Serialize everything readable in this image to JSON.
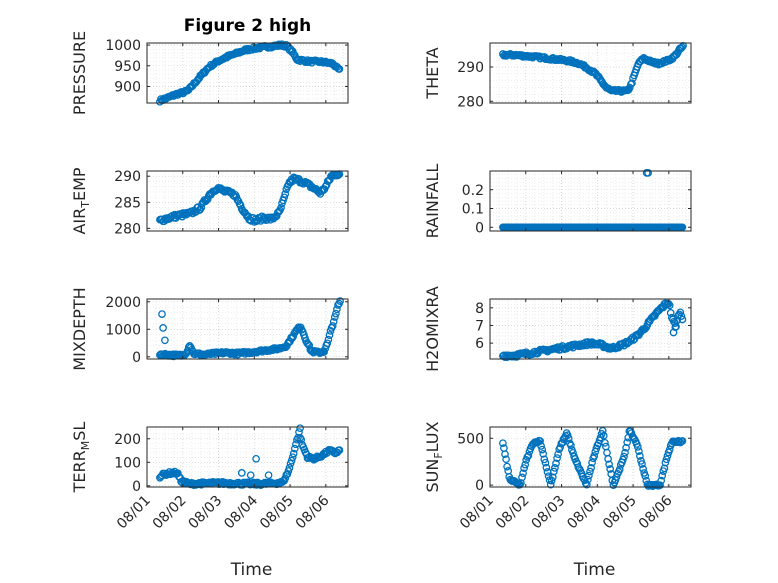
{
  "figure": {
    "title": "Figure 2 high",
    "marker_color": "#0072BD",
    "date_ticks": [
      "08/01",
      "08/02",
      "08/03",
      "08/04",
      "08/05",
      "08/06"
    ],
    "xlabel": "Time"
  },
  "chart_data": [
    {
      "type": "scatter",
      "ylabel": "PRESSURE",
      "ylabel_sub": "",
      "ylabel_tail": "",
      "xlim": [
        0,
        5.62
      ],
      "ylim": [
        860,
        1005
      ],
      "yticks": [
        900,
        950,
        1000
      ],
      "ytick_labels": [
        "900",
        "950",
        "1000"
      ],
      "show_xticklabels": false,
      "title": "Figure 2 high",
      "xlabel": "",
      "keypoints": [
        [
          0.36,
          866
        ],
        [
          0.5,
          870
        ],
        [
          0.7,
          877
        ],
        [
          0.85,
          882
        ],
        [
          1.0,
          885
        ],
        [
          1.15,
          890
        ],
        [
          1.35,
          910
        ],
        [
          1.55,
          930
        ],
        [
          1.75,
          948
        ],
        [
          2.0,
          962
        ],
        [
          2.25,
          972
        ],
        [
          2.5,
          980
        ],
        [
          2.75,
          988
        ],
        [
          3.0,
          992
        ],
        [
          3.25,
          995
        ],
        [
          3.5,
          997
        ],
        [
          3.75,
          1000
        ],
        [
          3.9,
          998
        ],
        [
          4.05,
          985
        ],
        [
          4.2,
          965
        ],
        [
          4.4,
          962
        ],
        [
          4.6,
          960
        ],
        [
          4.8,
          960
        ],
        [
          5.0,
          958
        ],
        [
          5.2,
          955
        ],
        [
          5.3,
          945
        ],
        [
          5.38,
          940
        ]
      ],
      "noise": 3
    },
    {
      "type": "scatter",
      "ylabel": "THETA",
      "ylabel_sub": "",
      "ylabel_tail": "",
      "xlim": [
        0,
        5.62
      ],
      "ylim": [
        279.5,
        297
      ],
      "yticks": [
        280,
        290
      ],
      "ytick_labels": [
        "280",
        "290"
      ],
      "show_xticklabels": false,
      "title": "",
      "xlabel": "",
      "keypoints": [
        [
          0.36,
          293.5
        ],
        [
          0.7,
          293.5
        ],
        [
          1.0,
          293.2
        ],
        [
          1.4,
          292.8
        ],
        [
          1.8,
          292.3
        ],
        [
          2.2,
          291.8
        ],
        [
          2.5,
          291
        ],
        [
          2.75,
          289.5
        ],
        [
          2.95,
          288
        ],
        [
          3.1,
          286
        ],
        [
          3.25,
          284
        ],
        [
          3.4,
          283
        ],
        [
          3.6,
          283
        ],
        [
          3.85,
          283
        ],
        [
          3.95,
          285
        ],
        [
          4.05,
          288
        ],
        [
          4.15,
          291
        ],
        [
          4.3,
          292.6
        ],
        [
          4.5,
          291.5
        ],
        [
          4.7,
          291
        ],
        [
          4.85,
          291.5
        ],
        [
          5.0,
          292
        ],
        [
          5.15,
          293
        ],
        [
          5.3,
          295
        ],
        [
          5.4,
          296
        ]
      ],
      "noise": 0.35
    },
    {
      "type": "scatter",
      "ylabel": "AIR",
      "ylabel_sub": "T",
      "ylabel_tail": "EMP",
      "xlim": [
        0,
        5.62
      ],
      "ylim": [
        279.5,
        291
      ],
      "yticks": [
        280,
        285,
        290
      ],
      "ytick_labels": [
        "280",
        "285",
        "290"
      ],
      "show_xticklabels": false,
      "title": "",
      "xlabel": "",
      "keypoints": [
        [
          0.36,
          281.5
        ],
        [
          0.6,
          282
        ],
        [
          0.9,
          282.5
        ],
        [
          1.2,
          282.8
        ],
        [
          1.5,
          284
        ],
        [
          1.75,
          286.5
        ],
        [
          1.95,
          287.8
        ],
        [
          2.2,
          287
        ],
        [
          2.45,
          286.5
        ],
        [
          2.65,
          284
        ],
        [
          2.85,
          282
        ],
        [
          3.05,
          281.5
        ],
        [
          3.25,
          282
        ],
        [
          3.5,
          281.8
        ],
        [
          3.7,
          283
        ],
        [
          3.85,
          286
        ],
        [
          3.95,
          288.5
        ],
        [
          4.1,
          289.5
        ],
        [
          4.35,
          289
        ],
        [
          4.6,
          288
        ],
        [
          4.85,
          286.8
        ],
        [
          5.0,
          288
        ],
        [
          5.15,
          290
        ],
        [
          5.3,
          290.5
        ],
        [
          5.38,
          290.3
        ]
      ],
      "noise": 0.4
    },
    {
      "type": "scatter",
      "ylabel": "RAINFALL",
      "ylabel_sub": "",
      "ylabel_tail": "",
      "xlim": [
        0,
        5.62
      ],
      "ylim": [
        -0.02,
        0.3
      ],
      "yticks": [
        0,
        0.1,
        0.2
      ],
      "ytick_labels": [
        "0",
        "0.1",
        "0.2"
      ],
      "show_xticklabels": false,
      "title": "",
      "xlabel": "",
      "keypoints": [
        [
          0.36,
          0
        ],
        [
          5.38,
          0
        ]
      ],
      "noise": 0,
      "extra_points": [
        [
          4.38,
          0.29
        ],
        [
          4.42,
          0.29
        ]
      ]
    },
    {
      "type": "scatter",
      "ylabel": "MIXDEPTH",
      "ylabel_sub": "",
      "ylabel_tail": "",
      "xlim": [
        0,
        5.62
      ],
      "ylim": [
        -80,
        2100
      ],
      "yticks": [
        0,
        1000,
        2000
      ],
      "ytick_labels": [
        "0",
        "1000",
        "2000"
      ],
      "show_xticklabels": false,
      "title": "",
      "xlabel": "",
      "keypoints": [
        [
          0.36,
          100
        ],
        [
          0.7,
          60
        ],
        [
          1.0,
          50
        ],
        [
          1.1,
          150
        ],
        [
          1.2,
          450
        ],
        [
          1.3,
          120
        ],
        [
          1.6,
          80
        ],
        [
          1.9,
          120
        ],
        [
          2.2,
          150
        ],
        [
          2.5,
          120
        ],
        [
          2.8,
          150
        ],
        [
          3.1,
          200
        ],
        [
          3.4,
          250
        ],
        [
          3.7,
          300
        ],
        [
          3.9,
          400
        ],
        [
          4.05,
          700
        ],
        [
          4.2,
          1000
        ],
        [
          4.3,
          1100
        ],
        [
          4.45,
          600
        ],
        [
          4.6,
          200
        ],
        [
          4.8,
          150
        ],
        [
          4.95,
          200
        ],
        [
          5.05,
          500
        ],
        [
          5.15,
          1000
        ],
        [
          5.25,
          1400
        ],
        [
          5.35,
          1900
        ],
        [
          5.4,
          2000
        ]
      ],
      "noise": 45,
      "extra_points": [
        [
          0.42,
          1550
        ],
        [
          0.45,
          1050
        ],
        [
          0.5,
          600
        ],
        [
          0.62,
          80
        ]
      ]
    },
    {
      "type": "scatter",
      "ylabel": "H2OMIXRA",
      "ylabel_sub": "",
      "ylabel_tail": "",
      "xlim": [
        0,
        5.62
      ],
      "ylim": [
        5.1,
        8.5
      ],
      "yticks": [
        6,
        7,
        8
      ],
      "ytick_labels": [
        "6",
        "7",
        "8"
      ],
      "show_xticklabels": false,
      "title": "",
      "xlabel": "",
      "keypoints": [
        [
          0.36,
          5.3
        ],
        [
          0.7,
          5.3
        ],
        [
          1.0,
          5.4
        ],
        [
          1.3,
          5.5
        ],
        [
          1.6,
          5.6
        ],
        [
          1.9,
          5.7
        ],
        [
          2.2,
          5.8
        ],
        [
          2.5,
          5.9
        ],
        [
          2.8,
          6.0
        ],
        [
          3.1,
          5.9
        ],
        [
          3.4,
          5.7
        ],
        [
          3.7,
          5.9
        ],
        [
          3.9,
          6.1
        ],
        [
          4.1,
          6.4
        ],
        [
          4.3,
          6.8
        ],
        [
          4.5,
          7.3
        ],
        [
          4.7,
          7.8
        ],
        [
          4.9,
          8.2
        ],
        [
          5.0,
          8.3
        ],
        [
          5.1,
          7.3
        ],
        [
          5.2,
          7.0
        ],
        [
          5.3,
          7.8
        ],
        [
          5.38,
          7.4
        ]
      ],
      "noise": 0.1,
      "extra_points": [
        [
          5.13,
          6.6
        ],
        [
          5.18,
          6.9
        ]
      ]
    },
    {
      "type": "scatter",
      "ylabel": "TERR",
      "ylabel_sub": "M",
      "ylabel_tail": "SL",
      "xlim": [
        0,
        5.62
      ],
      "ylim": [
        -5,
        250
      ],
      "yticks": [
        0,
        100,
        200
      ],
      "ytick_labels": [
        "0",
        "100",
        "200"
      ],
      "show_xticklabels": true,
      "title": "",
      "xlabel": "Time",
      "keypoints": [
        [
          0.36,
          40
        ],
        [
          0.5,
          50
        ],
        [
          0.7,
          55
        ],
        [
          0.85,
          55
        ],
        [
          0.95,
          20
        ],
        [
          1.2,
          8
        ],
        [
          1.5,
          10
        ],
        [
          2.0,
          12
        ],
        [
          2.5,
          10
        ],
        [
          3.0,
          8
        ],
        [
          3.5,
          10
        ],
        [
          3.8,
          15
        ],
        [
          3.95,
          60
        ],
        [
          4.05,
          110
        ],
        [
          4.15,
          170
        ],
        [
          4.25,
          225
        ],
        [
          4.35,
          170
        ],
        [
          4.5,
          120
        ],
        [
          4.7,
          115
        ],
        [
          4.9,
          130
        ],
        [
          5.1,
          150
        ],
        [
          5.25,
          140
        ],
        [
          5.38,
          150
        ]
      ],
      "noise": 6,
      "extra_points": [
        [
          3.05,
          115
        ],
        [
          2.65,
          55
        ],
        [
          2.9,
          45
        ],
        [
          3.4,
          45
        ],
        [
          4.28,
          245
        ]
      ]
    },
    {
      "type": "scatter",
      "ylabel": "SUN",
      "ylabel_sub": "F",
      "ylabel_tail": "LUX",
      "xlim": [
        0,
        5.62
      ],
      "ylim": [
        -20,
        620
      ],
      "yticks": [
        0,
        500
      ],
      "ytick_labels": [
        "0",
        "500"
      ],
      "show_xticklabels": true,
      "title": "",
      "xlabel": "Time",
      "keypoints": [
        [
          0.36,
          450
        ],
        [
          0.55,
          60
        ],
        [
          0.85,
          0
        ],
        [
          1.0,
          250
        ],
        [
          1.2,
          450
        ],
        [
          1.4,
          470
        ],
        [
          1.7,
          0
        ],
        [
          1.95,
          400
        ],
        [
          2.15,
          560
        ],
        [
          2.35,
          300
        ],
        [
          2.7,
          0
        ],
        [
          2.9,
          300
        ],
        [
          3.15,
          580
        ],
        [
          3.45,
          0
        ],
        [
          3.75,
          300
        ],
        [
          3.9,
          580
        ],
        [
          4.1,
          450
        ],
        [
          4.4,
          0
        ],
        [
          4.75,
          0
        ],
        [
          4.95,
          300
        ],
        [
          5.1,
          470
        ],
        [
          5.3,
          460
        ],
        [
          5.38,
          470
        ]
      ],
      "noise": 10
    }
  ]
}
